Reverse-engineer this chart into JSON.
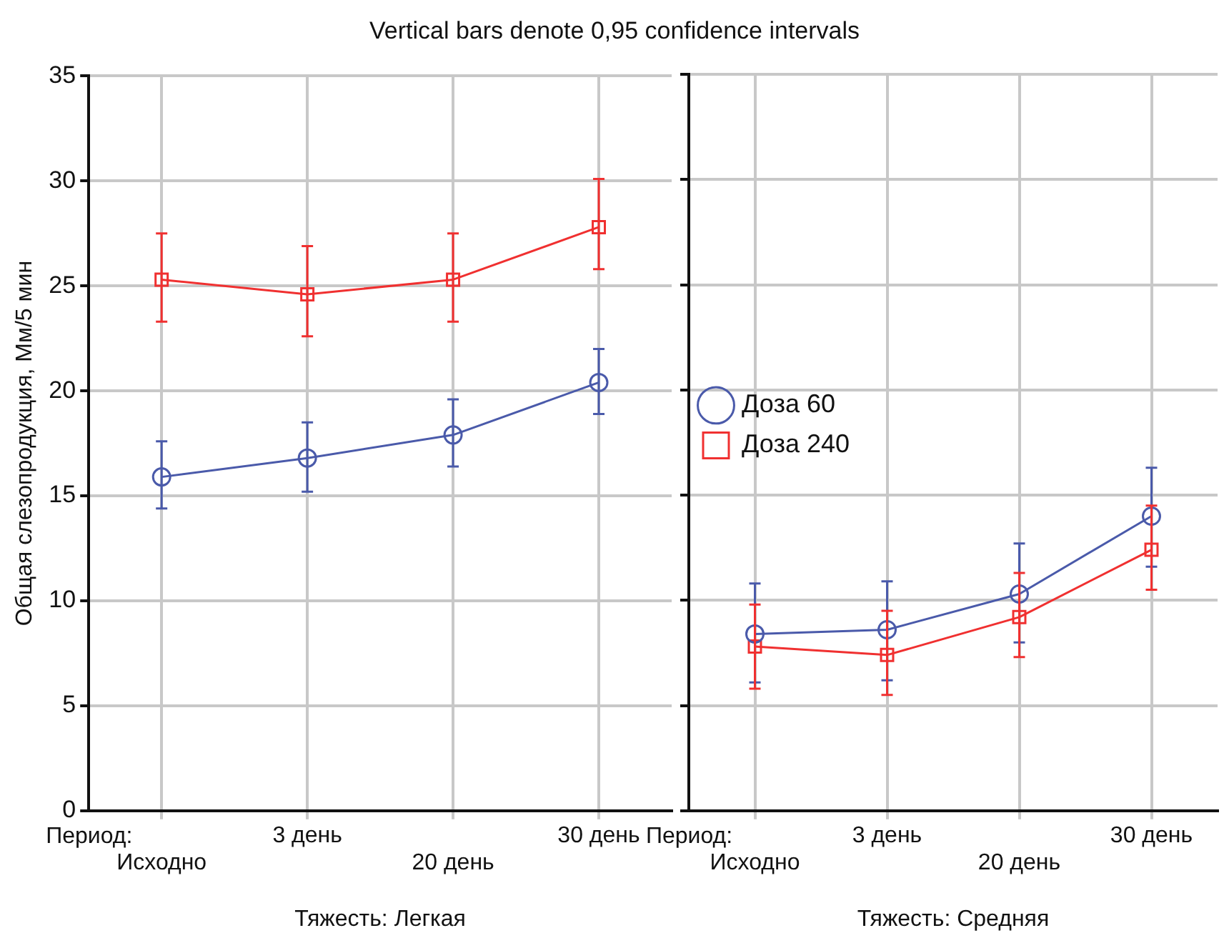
{
  "chart_data": [
    {
      "type": "line",
      "title": "Vertical bars denote 0,95 confidence intervals",
      "xlabel": "Тяжесть: Легкая",
      "ylabel": "Общая слезопродукция, Мм/5 мин",
      "annotations": [
        "Период:"
      ],
      "categories": [
        "Исходно",
        "3 день",
        "20 день",
        "30 день"
      ],
      "series": [
        {
          "color": "#4a5aaa",
          "marker": "circle",
          "values": [
            15.9,
            16.8,
            17.9,
            20.4
          ],
          "errors": [
            [
              14.4,
              17.6
            ],
            [
              15.2,
              18.5
            ],
            [
              16.4,
              19.6
            ],
            [
              18.9,
              22.0
            ]
          ]
        },
        {
          "color": "#f03030",
          "marker": "square",
          "values": [
            25.3,
            24.6,
            25.3,
            27.8
          ],
          "errors": [
            [
              23.3,
              27.5
            ],
            [
              22.6,
              26.9
            ],
            [
              23.3,
              27.5
            ],
            [
              25.8,
              30.1
            ]
          ]
        }
      ],
      "ylim": [
        0,
        35
      ],
      "yticks": [
        0,
        5,
        10,
        15,
        20,
        25,
        30,
        35
      ],
      "grid": true,
      "legend": false
    },
    {
      "type": "line",
      "xlabel": "Тяжесть: Средняя",
      "annotations": [
        "Период:"
      ],
      "categories": [
        "Исходно",
        "3 день",
        "20 день",
        "30 день"
      ],
      "series": [
        {
          "name": "Доза 60",
          "color": "#4a5aaa",
          "marker": "circle",
          "values": [
            8.4,
            8.6,
            10.3,
            14.0
          ],
          "errors": [
            [
              6.1,
              10.8
            ],
            [
              6.2,
              10.9
            ],
            [
              8.0,
              12.7
            ],
            [
              11.6,
              16.3
            ]
          ]
        },
        {
          "name": "Доза 240",
          "color": "#f03030",
          "marker": "square",
          "values": [
            7.8,
            7.4,
            9.2,
            12.4
          ],
          "errors": [
            [
              5.8,
              9.8
            ],
            [
              5.5,
              9.5
            ],
            [
              7.3,
              11.3
            ],
            [
              10.5,
              14.5
            ]
          ]
        }
      ],
      "ylim": [
        0,
        35
      ],
      "yticks": [
        0,
        5,
        10,
        15,
        20,
        25,
        30,
        35
      ],
      "grid": true,
      "legend": "top",
      "tick_labels": "x"
    }
  ]
}
